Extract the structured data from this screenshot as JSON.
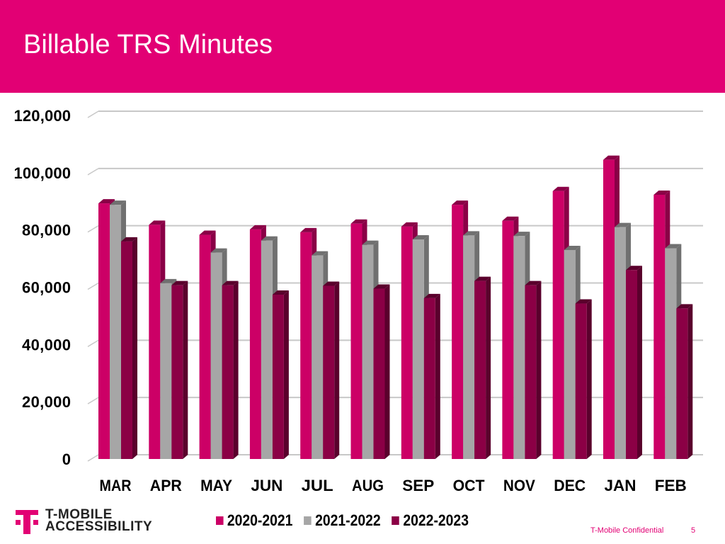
{
  "header": {
    "title": "Billable TRS Minutes"
  },
  "colors": {
    "brand": "#E20074",
    "series": [
      "#CC0066",
      "#A6A6A6",
      "#8B0045"
    ]
  },
  "chart_data": {
    "type": "bar",
    "title": "",
    "xlabel": "",
    "ylabel": "",
    "ylim": [
      0,
      120000
    ],
    "yticks": [
      "0",
      "20,000",
      "40,000",
      "60,000",
      "80,000",
      "100,000",
      "120,000"
    ],
    "grid": true,
    "legend": "bottom",
    "categories": [
      "MAR",
      "APR",
      "MAY",
      "JUN",
      "JUL",
      "AUG",
      "SEP",
      "OCT",
      "NOV",
      "DEC",
      "JAN",
      "FEB"
    ],
    "series": [
      {
        "name": "2020-2021",
        "values": [
          89300,
          81800,
          78300,
          80200,
          79200,
          82200,
          81200,
          88800,
          83200,
          93600,
          104500,
          92300
        ]
      },
      {
        "name": "2021-2022",
        "values": [
          88800,
          61400,
          72100,
          76300,
          71100,
          74800,
          76700,
          78100,
          77900,
          73000,
          81000,
          73600
        ]
      },
      {
        "name": "2022-2023",
        "values": [
          76000,
          60700,
          60700,
          57400,
          60500,
          59500,
          56200,
          62200,
          60700,
          54300,
          66000,
          52600
        ]
      }
    ]
  },
  "logo": {
    "line1": "T-MOBILE",
    "line2": "ACCESSIBILITY"
  },
  "footer": {
    "confidential": "T-Mobile Confidential",
    "page": "5"
  }
}
